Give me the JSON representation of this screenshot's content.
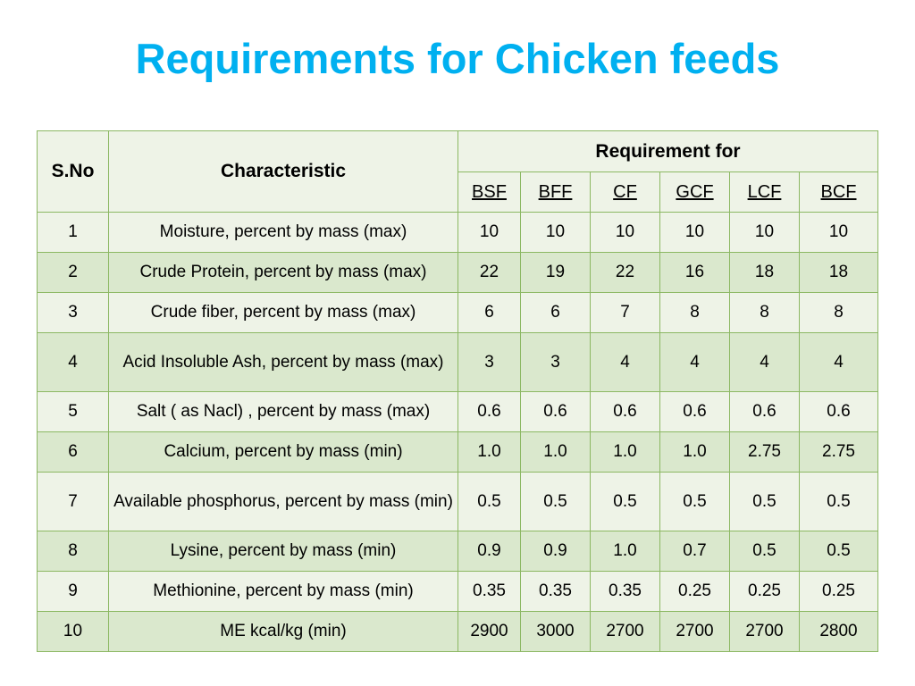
{
  "title": "Requirements for Chicken feeds",
  "table": {
    "header": {
      "sno": "S.No",
      "characteristic": "Characteristic",
      "group": "Requirement for",
      "columns": [
        "BSF",
        "BFF",
        "CF",
        "GCF",
        "LCF",
        "BCF"
      ]
    },
    "rows": [
      {
        "sno": "1",
        "characteristic": "Moisture, percent by mass (max)",
        "values": [
          "10",
          "10",
          "10",
          "10",
          "10",
          "10"
        ]
      },
      {
        "sno": "2",
        "characteristic": "Crude Protein, percent by mass (max)",
        "values": [
          "22",
          "19",
          "22",
          "16",
          "18",
          "18"
        ]
      },
      {
        "sno": "3",
        "characteristic": "Crude fiber, percent by mass (max)",
        "values": [
          "6",
          "6",
          "7",
          "8",
          "8",
          "8"
        ]
      },
      {
        "sno": "4",
        "characteristic": "Acid Insoluble Ash, percent by mass (max)",
        "values": [
          "3",
          "3",
          "4",
          "4",
          "4",
          "4"
        ]
      },
      {
        "sno": "5",
        "characteristic": "Salt ( as Nacl) , percent by mass (max)",
        "values": [
          "0.6",
          "0.6",
          "0.6",
          "0.6",
          "0.6",
          "0.6"
        ]
      },
      {
        "sno": "6",
        "characteristic": "Calcium, percent by mass (min)",
        "values": [
          "1.0",
          "1.0",
          "1.0",
          "1.0",
          "2.75",
          "2.75"
        ]
      },
      {
        "sno": "7",
        "characteristic": "Available phosphorus, percent by mass (min)",
        "values": [
          "0.5",
          "0.5",
          "0.5",
          "0.5",
          "0.5",
          "0.5"
        ]
      },
      {
        "sno": "8",
        "characteristic": "Lysine, percent by mass (min)",
        "values": [
          "0.9",
          "0.9",
          "1.0",
          "0.7",
          "0.5",
          "0.5"
        ]
      },
      {
        "sno": "9",
        "characteristic": "Methionine, percent by mass (min)",
        "values": [
          "0.35",
          "0.35",
          "0.35",
          "0.25",
          "0.25",
          "0.25"
        ]
      },
      {
        "sno": "10",
        "characteristic": "ME kcal/kg (min)",
        "values": [
          "2900",
          "3000",
          "2700",
          "2700",
          "2700",
          "2800"
        ]
      }
    ]
  },
  "colors": {
    "title": "#00b0f0",
    "border": "#8cb863",
    "band_light": "#eef3e7",
    "band_dark": "#dae8cd"
  }
}
